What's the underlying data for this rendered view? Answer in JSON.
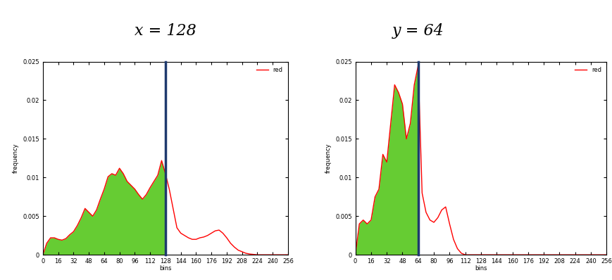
{
  "chart_data": [
    {
      "type": "line",
      "title": "x = 128",
      "x_label": "bins",
      "y_label": "frequency",
      "threshold": 128,
      "color": "#66cc33",
      "legend": "upper right",
      "grid": false,
      "xlim": [
        0,
        256
      ],
      "xticks": [
        0,
        16,
        32,
        48,
        64,
        80,
        96,
        112,
        128,
        144,
        160,
        176,
        192,
        208,
        224,
        240,
        256
      ],
      "ylim": [
        0,
        0.025
      ],
      "yticks": [
        0,
        0.005,
        0.01,
        0.015,
        0.02,
        0.025
      ],
      "x": [
        0,
        4,
        8,
        12,
        16,
        20,
        24,
        28,
        32,
        36,
        40,
        44,
        48,
        52,
        56,
        60,
        64,
        68,
        72,
        76,
        80,
        84,
        88,
        92,
        96,
        100,
        104,
        108,
        112,
        116,
        120,
        124,
        128,
        132,
        136,
        140,
        144,
        148,
        152,
        156,
        160,
        164,
        168,
        172,
        176,
        180,
        184,
        188,
        192,
        196,
        200,
        204,
        208,
        212,
        216,
        220,
        224,
        228,
        232,
        236,
        240,
        244,
        248,
        252,
        256
      ],
      "series": [
        {
          "name": "red",
          "color": "#ff0000",
          "values": [
            0,
            0.0015,
            0.0022,
            0.0022,
            0.002,
            0.0019,
            0.0021,
            0.0026,
            0.003,
            0.0038,
            0.0048,
            0.006,
            0.0055,
            0.005,
            0.0058,
            0.0072,
            0.0085,
            0.0101,
            0.0105,
            0.0103,
            0.0112,
            0.0105,
            0.0095,
            0.009,
            0.0085,
            0.0078,
            0.0072,
            0.0078,
            0.0087,
            0.0095,
            0.0103,
            0.0122,
            0.0105,
            0.0085,
            0.006,
            0.0035,
            0.0028,
            0.0025,
            0.0022,
            0.002,
            0.002,
            0.0022,
            0.0023,
            0.0025,
            0.0028,
            0.0031,
            0.0032,
            0.0028,
            0.0022,
            0.0015,
            0.001,
            0.0006,
            0.0004,
            0.0002,
            0.0001,
            5e-05,
            0,
            0,
            0,
            0,
            0,
            0,
            0,
            0,
            0
          ]
        }
      ]
    },
    {
      "type": "line",
      "title": "y = 64",
      "x_label": "bins",
      "y_label": "frequency",
      "threshold": 64,
      "color": "#66cc33",
      "legend": "upper right",
      "grid": false,
      "xlim": [
        0,
        256
      ],
      "xticks": [
        0,
        16,
        32,
        48,
        64,
        80,
        96,
        112,
        128,
        144,
        160,
        176,
        192,
        208,
        224,
        240,
        256
      ],
      "ylim": [
        0,
        0.025
      ],
      "yticks": [
        0,
        0.005,
        0.01,
        0.015,
        0.02,
        0.025
      ],
      "x": [
        0,
        4,
        8,
        12,
        16,
        20,
        24,
        28,
        32,
        36,
        40,
        44,
        48,
        52,
        56,
        60,
        64,
        68,
        72,
        76,
        80,
        84,
        88,
        92,
        96,
        100,
        104,
        108,
        112,
        116,
        120,
        124,
        128,
        132,
        136,
        140,
        144,
        148,
        152,
        156,
        160,
        164,
        168,
        172,
        176,
        180,
        184,
        188,
        192,
        196,
        200,
        204,
        208,
        212,
        216,
        220,
        224,
        228,
        232,
        236,
        240,
        244,
        248,
        252,
        256
      ],
      "series": [
        {
          "name": "red",
          "color": "#ff0000",
          "values": [
            0,
            0.004,
            0.0045,
            0.004,
            0.0045,
            0.0075,
            0.0085,
            0.013,
            0.012,
            0.017,
            0.022,
            0.021,
            0.0195,
            0.015,
            0.017,
            0.022,
            0.0245,
            0.008,
            0.0055,
            0.0045,
            0.0042,
            0.0048,
            0.0058,
            0.0062,
            0.004,
            0.002,
            0.0008,
            0.0002,
            0,
            0,
            0,
            0,
            0,
            0,
            0,
            0,
            0,
            0,
            0,
            0,
            0,
            0,
            0,
            0,
            0,
            0,
            0,
            0,
            0,
            0,
            0,
            0,
            0,
            0,
            0,
            0,
            0,
            0,
            0,
            0,
            0,
            0,
            0,
            0,
            0
          ]
        }
      ]
    }
  ]
}
